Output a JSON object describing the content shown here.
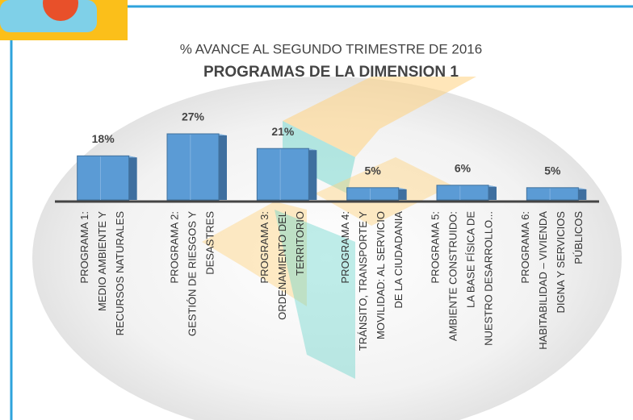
{
  "chart_data": {
    "type": "bar",
    "title": "% AVANCE AL SEGUNDO TRIMESTRE DE 2016",
    "subtitle": "PROGRAMAS DE LA DIMENSION 1",
    "categories": [
      [
        "PROGRAMA 1:",
        "MEDIO AMBIENTE Y",
        "RECURSOS NATURALES"
      ],
      [
        "PROGRAMA 2:",
        "GESTIÓN DE RIESGOS Y",
        "DESASTRES"
      ],
      [
        "PROGRAMA 3:",
        "ORDENAMIENTO DEL",
        "TERRITORIO"
      ],
      [
        "PROGRAMA 4:",
        "TRÁNSITO, TRANSPORTE Y",
        "MOVILIDAD: AL SERVICIO",
        "DE LA CIUDADANIA"
      ],
      [
        "PROGRAMA 5:",
        "AMBIENTE CONSTRUIDO:",
        "LA BASE FÍSICA DE",
        "NUESTRO DESARROLLO..."
      ],
      [
        "PROGRAMA 6:",
        "HABITABILIDAD – VIVIENDA",
        "DIGNA Y SERVICIOS",
        "PÚBLICOS"
      ]
    ],
    "values": [
      18,
      27,
      21,
      5,
      6,
      5
    ],
    "value_labels": [
      "18%",
      "27%",
      "21%",
      "5%",
      "6%",
      "5%"
    ],
    "color": "#5b9bd5"
  }
}
